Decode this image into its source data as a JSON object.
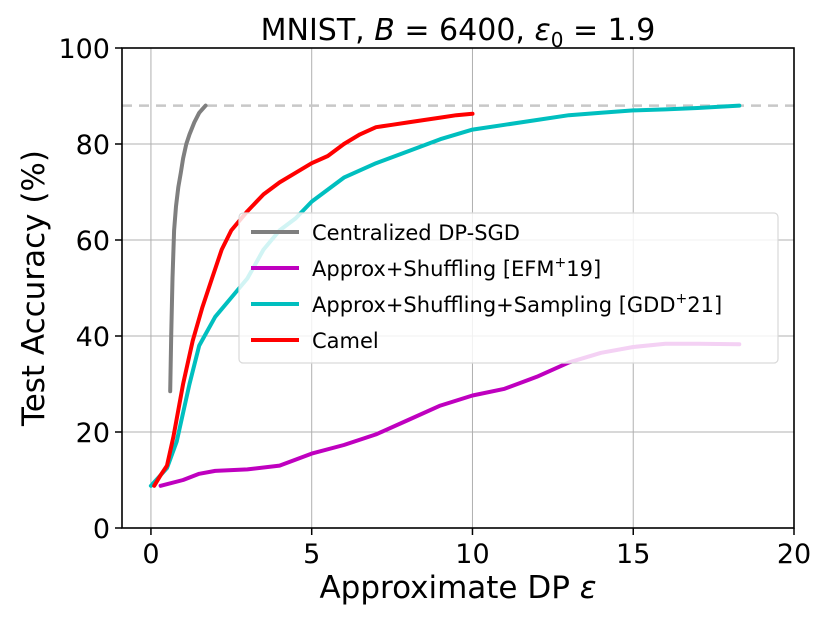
{
  "chart_data": {
    "type": "line",
    "title": {
      "prefix": "MNIST, ",
      "b_symbol": "B",
      "b_value": " = 6400, ",
      "eps_symbol": "ε",
      "eps_sub": "0",
      "eps_value": " = 1.9"
    },
    "xlabel": {
      "text": "Approximate DP ",
      "symbol": "ε"
    },
    "ylabel": "Test Accuracy (%)",
    "xlim": [
      -0.9,
      20
    ],
    "ylim": [
      0,
      100
    ],
    "xticks": [
      0,
      5,
      10,
      15,
      20
    ],
    "yticks": [
      0,
      20,
      40,
      60,
      80,
      100
    ],
    "grid": true,
    "legend_position": "center",
    "reference_line": {
      "y": 88,
      "style": "dashed",
      "color": "#c8c8c8"
    },
    "series": [
      {
        "name": "Centralized DP-SGD",
        "color": "#7f7f7f",
        "x": [
          0.6,
          0.63,
          0.67,
          0.72,
          0.78,
          0.85,
          0.93,
          1.0,
          1.1,
          1.2,
          1.35,
          1.5,
          1.7
        ],
        "y": [
          28.5,
          40,
          52,
          62,
          67,
          71,
          74,
          77,
          80,
          82,
          84.5,
          86.5,
          88
        ]
      },
      {
        "name_main": "Approx+Shuffling [EFM",
        "name_sup": "+",
        "name_end": "19]",
        "color": "#bf00bf",
        "x": [
          0.3,
          1.0,
          1.5,
          2.0,
          3.0,
          4.0,
          5.0,
          6.0,
          7.0,
          8.0,
          9.0,
          10.0,
          11.0,
          12.0,
          13.0,
          14.0,
          15.0,
          16.0,
          17.0,
          18.3
        ],
        "y": [
          8.8,
          10,
          11.3,
          11.9,
          12.2,
          13,
          15.5,
          17.3,
          19.5,
          22.5,
          25.5,
          27.6,
          29,
          31.5,
          34.5,
          36.5,
          37.7,
          38.4,
          38.4,
          38.3
        ]
      },
      {
        "name_main": "Approx+Shuffling+Sampling [GDD",
        "name_sup": "+",
        "name_end": "21]",
        "color": "#00bfbf",
        "x": [
          0.0,
          0.3,
          0.5,
          0.8,
          1.2,
          1.5,
          2.0,
          2.5,
          3.0,
          3.5,
          4.0,
          4.5,
          5.0,
          6.0,
          7.0,
          8.0,
          9.0,
          10.0,
          11.0,
          12.0,
          13.0,
          14.0,
          15.0,
          16.0,
          17.0,
          18.3
        ],
        "y": [
          8.8,
          11,
          12.5,
          18,
          30,
          38,
          44,
          48,
          52,
          58,
          62,
          64.5,
          68,
          73,
          76,
          78.5,
          81,
          83,
          84,
          85,
          86,
          86.5,
          87,
          87.2,
          87.5,
          88
        ]
      },
      {
        "name": "Camel",
        "color": "#ff0000",
        "x": [
          0.1,
          0.3,
          0.5,
          0.7,
          1.0,
          1.3,
          1.6,
          1.9,
          2.2,
          2.5,
          3.0,
          3.5,
          4.0,
          4.5,
          5.0,
          5.5,
          6.0,
          6.5,
          7.0,
          7.5,
          8.0,
          8.5,
          9.0,
          9.5,
          10.0
        ],
        "y": [
          8.8,
          11,
          13,
          19,
          30,
          39,
          46,
          52,
          58,
          62,
          66,
          69.5,
          72,
          74,
          76,
          77.5,
          80,
          82,
          83.5,
          84,
          84.5,
          85,
          85.5,
          86,
          86.3
        ]
      }
    ]
  }
}
